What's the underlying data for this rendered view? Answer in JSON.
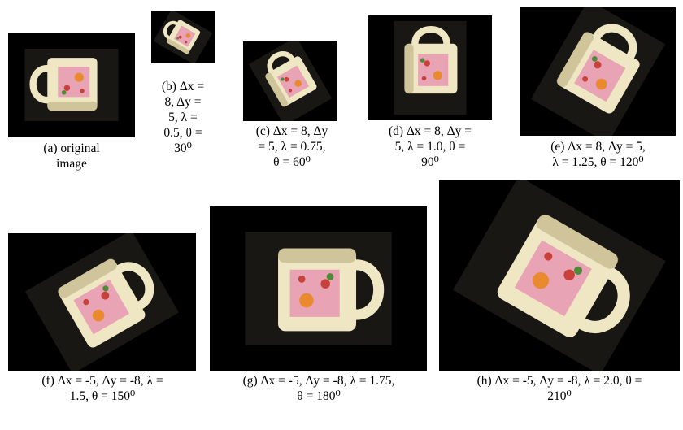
{
  "figure": {
    "panels": [
      {
        "id": "a",
        "rotation_deg": 0,
        "scale": 1.0,
        "caption_lines": [
          "(a) original",
          "image"
        ]
      },
      {
        "id": "b",
        "rotation_deg": 30,
        "scale": 0.5,
        "caption_lines": [
          "(b) Δx =",
          "8, Δy =",
          "5, λ =",
          "0.5, θ =",
          "30⁰"
        ]
      },
      {
        "id": "c",
        "rotation_deg": 60,
        "scale": 0.75,
        "caption_lines": [
          "(c) Δx = 8, Δy",
          "= 5, λ = 0.75,",
          "θ = 60⁰"
        ]
      },
      {
        "id": "d",
        "rotation_deg": 90,
        "scale": 1.0,
        "caption_lines": [
          "(d) Δx = 8, Δy =",
          "5, λ = 1.0, θ =",
          "90⁰"
        ]
      },
      {
        "id": "e",
        "rotation_deg": 120,
        "scale": 1.25,
        "caption_lines": [
          "(e) Δx = 8, Δy = 5,",
          "λ = 1.25, θ = 120⁰"
        ]
      },
      {
        "id": "f",
        "rotation_deg": 150,
        "scale": 1.5,
        "caption_lines": [
          "(f) Δx = -5, Δy = -8, λ =",
          "1.5, θ = 150⁰"
        ]
      },
      {
        "id": "g",
        "rotation_deg": 180,
        "scale": 1.75,
        "caption_lines": [
          "(g) Δx = -5, Δy = -8, λ = 1.75,",
          "θ = 180⁰"
        ]
      },
      {
        "id": "h",
        "rotation_deg": 210,
        "scale": 2.0,
        "caption_lines": [
          "(h) Δx = -5, Δy = -8, λ = 2.0, θ =",
          "210⁰"
        ]
      }
    ],
    "colors": {
      "background": "#000000",
      "patch": "#2e2a22",
      "mug_body": "#efe7c4",
      "mug_shadow": "#b9ad7e",
      "decal": "#e8a3b4",
      "flower_orange": "#e98a2e",
      "flower_red": "#c8413a",
      "flower_green": "#4f8a38"
    }
  }
}
